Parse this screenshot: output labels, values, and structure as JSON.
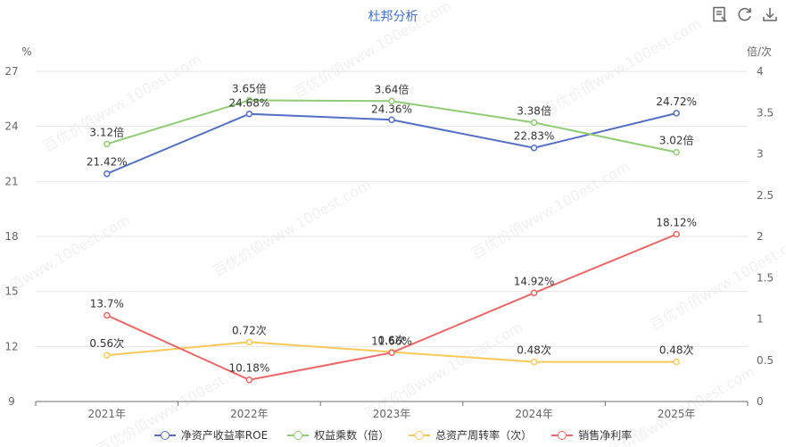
{
  "chart_data": {
    "type": "line",
    "title": "杜邦分析",
    "categories": [
      "2021年",
      "2022年",
      "2023年",
      "2024年",
      "2025年"
    ],
    "left_axis": {
      "unit": "%",
      "min": 9,
      "max": 27,
      "ticks": [
        9,
        12,
        15,
        18,
        21,
        24,
        27
      ]
    },
    "right_axis": {
      "unit": "倍/次",
      "min": 0,
      "max": 4,
      "ticks": [
        "0",
        "0.5",
        "1",
        "1.5",
        "2",
        "2.5",
        "3",
        "3.5",
        "4"
      ]
    },
    "series": [
      {
        "name": "净资产收益率ROE",
        "axis": "left",
        "color": "#5470c6",
        "values": [
          21.42,
          24.68,
          24.36,
          22.83,
          24.72
        ],
        "labels": [
          "21.42%",
          "24.68%",
          "24.36%",
          "22.83%",
          "24.72%"
        ],
        "label_pos": [
          "above",
          "below",
          "below",
          "above",
          "above"
        ]
      },
      {
        "name": "权益乘数（倍）",
        "axis": "right",
        "color": "#91cc75",
        "values": [
          3.12,
          3.65,
          3.64,
          3.38,
          3.02
        ],
        "labels": [
          "3.12倍",
          "3.65倍",
          "3.64倍",
          "3.38倍",
          "3.02倍"
        ],
        "label_pos": [
          "above",
          "above",
          "above",
          "above",
          "above"
        ]
      },
      {
        "name": "总资产周转率（次）",
        "axis": "right",
        "color": "#fac858",
        "values": [
          0.56,
          0.72,
          0.6,
          0.48,
          0.48
        ],
        "labels": [
          "0.56次",
          "0.72次",
          "0.6次",
          "0.48次",
          "0.48次"
        ],
        "label_pos": [
          "above",
          "above",
          "above",
          "above",
          "above"
        ]
      },
      {
        "name": "销售净利率",
        "axis": "left",
        "color": "#ee6666",
        "values": [
          13.7,
          10.18,
          11.66,
          14.92,
          18.12
        ],
        "labels": [
          "13.7%",
          "10.18%",
          "11.66%",
          "14.92%",
          "18.12%"
        ],
        "label_pos": [
          "above",
          "above",
          "above",
          "above",
          "above"
        ]
      }
    ],
    "watermark": "百优价值www.100est.com"
  },
  "toolbar": {
    "icons": [
      "data-view-icon",
      "refresh-icon",
      "download-icon"
    ]
  }
}
